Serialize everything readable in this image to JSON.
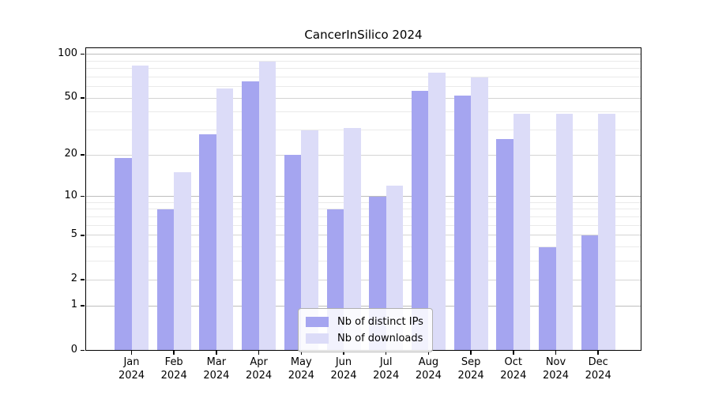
{
  "title": "CancerInSilico 2024",
  "chart_data": {
    "type": "bar",
    "title": "CancerInSilico 2024",
    "xlabel": "",
    "ylabel": "",
    "categories": [
      "Jan",
      "Feb",
      "Mar",
      "Apr",
      "May",
      "Jun",
      "Jul",
      "Aug",
      "Sep",
      "Oct",
      "Nov",
      "Dec"
    ],
    "year_label": "2024",
    "series": [
      {
        "name": "Nb of distinct IPs",
        "color": "#a5a5f0",
        "values": [
          19,
          8,
          28,
          65,
          20,
          8,
          10,
          56,
          52,
          26,
          4,
          5
        ]
      },
      {
        "name": "Nb of downloads",
        "color": "#dcdcf8",
        "values": [
          84,
          15,
          58,
          89,
          30,
          31,
          12,
          75,
          69,
          39,
          39,
          39
        ]
      }
    ],
    "y_scale": "log10(1+x)",
    "y_ticks": [
      0,
      1,
      2,
      5,
      10,
      20,
      50,
      100
    ],
    "y_minor_ticks": [
      3,
      4,
      6,
      7,
      8,
      9,
      30,
      40,
      60,
      70,
      80,
      90
    ],
    "ylim": [
      0,
      112
    ],
    "grid": true,
    "legend_position": "lower-center"
  }
}
